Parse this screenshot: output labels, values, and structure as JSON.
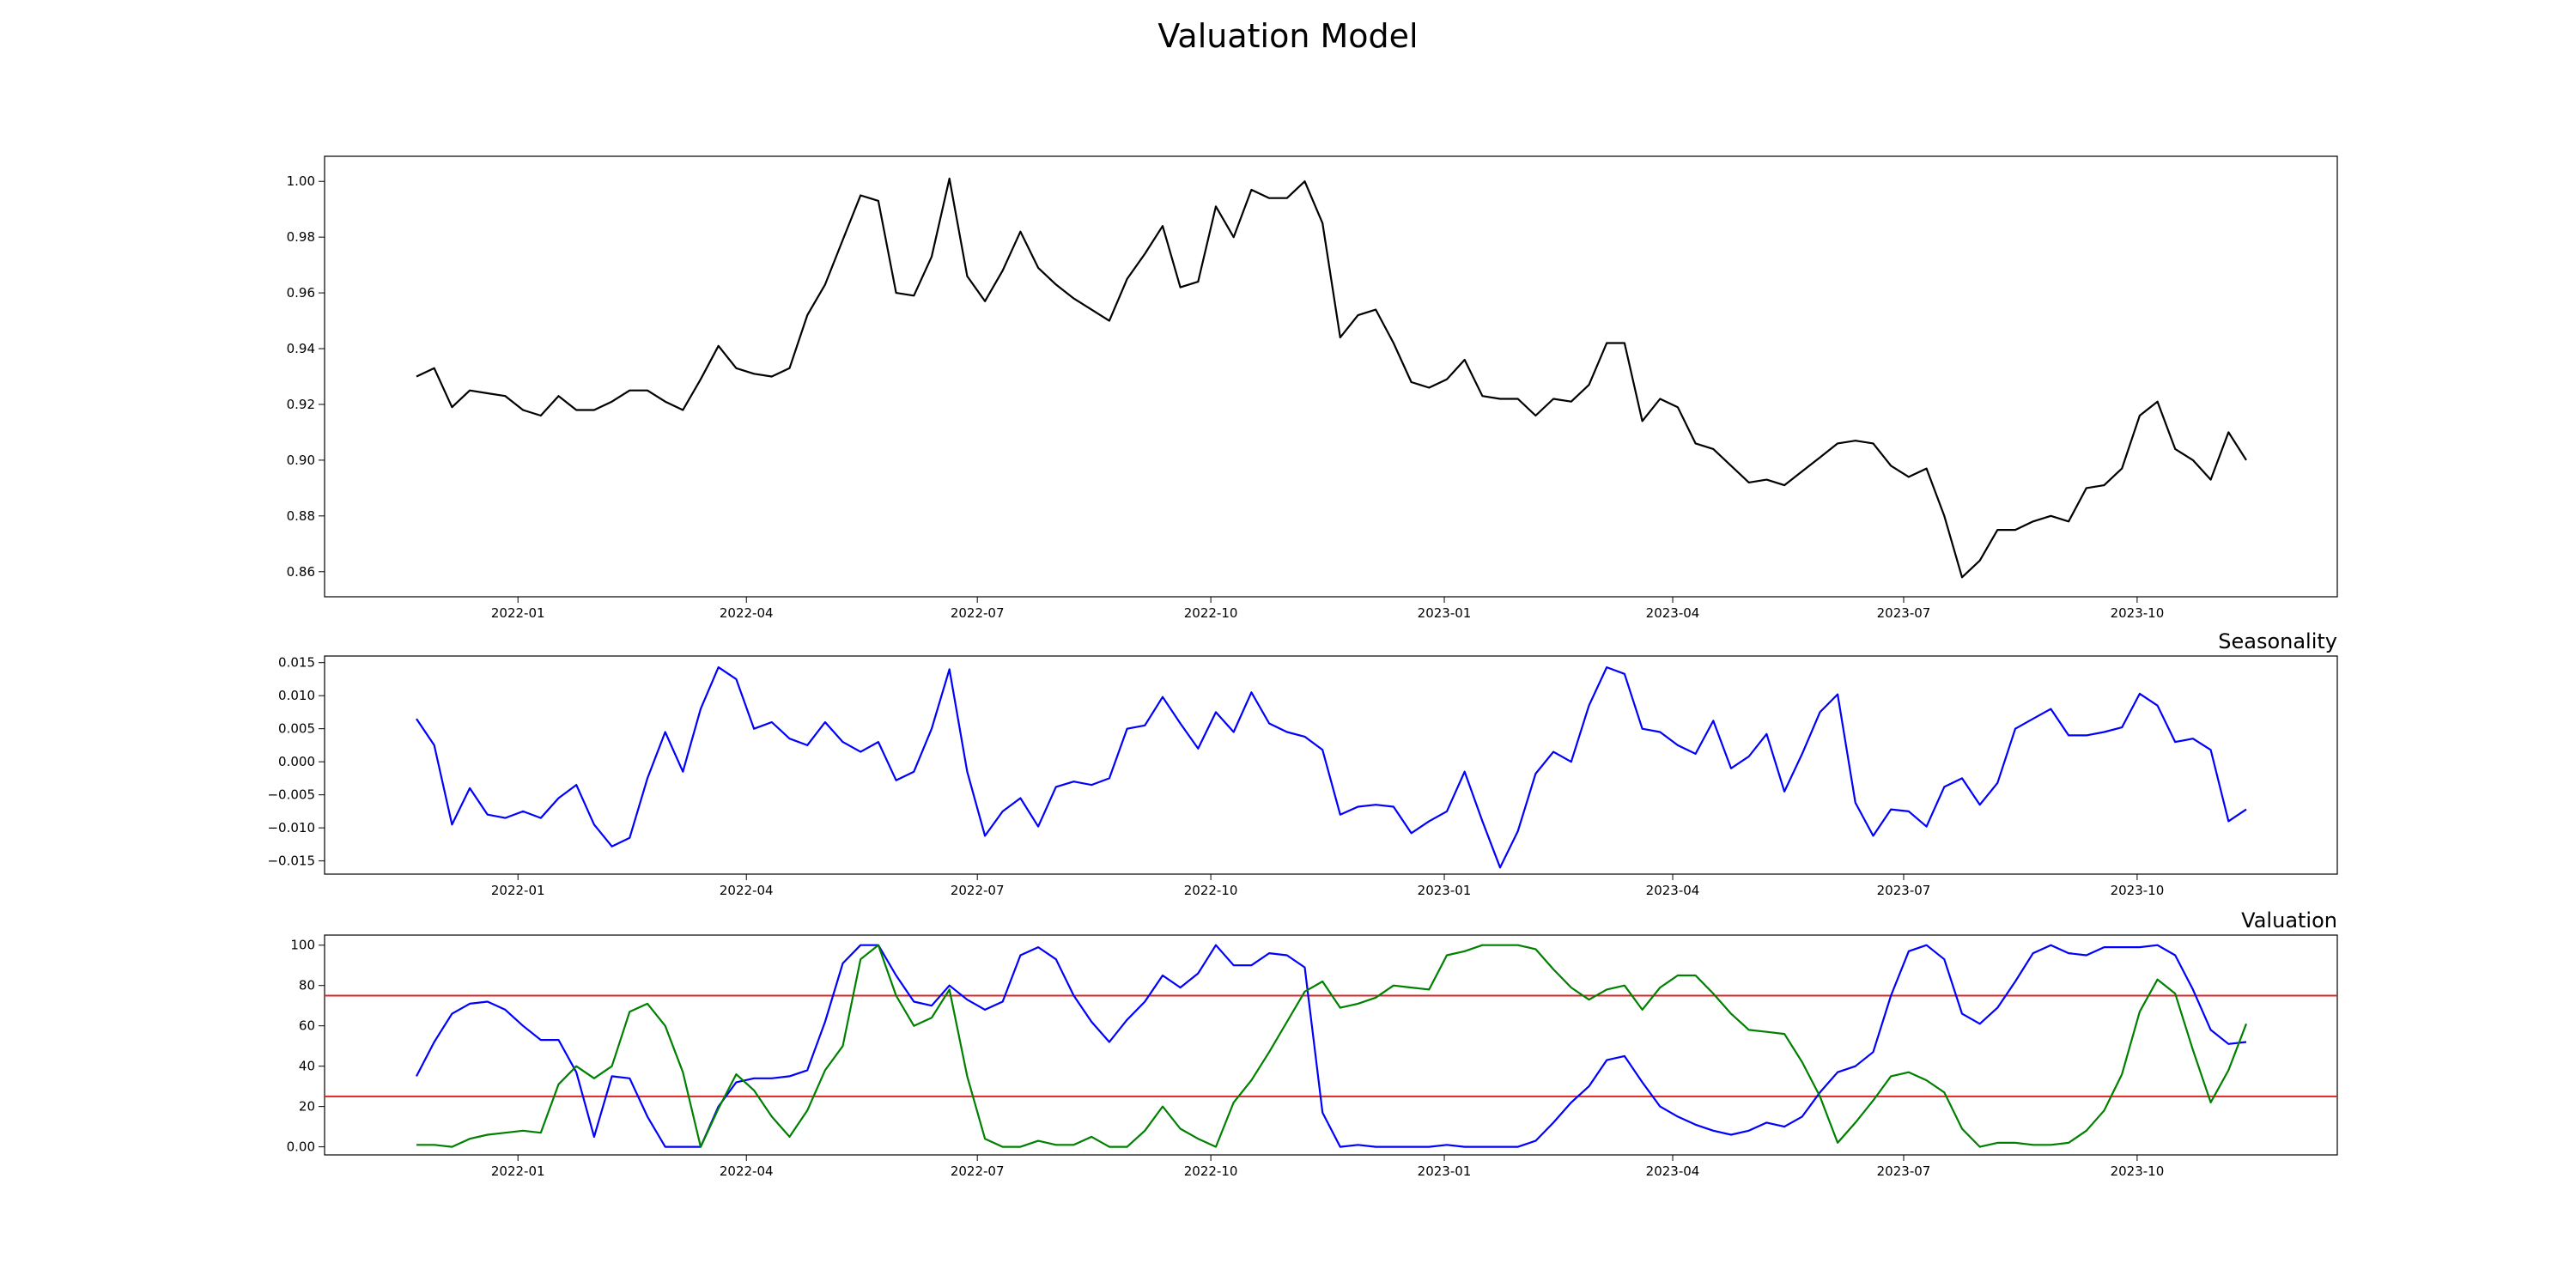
{
  "title": "Valuation Model",
  "x_tick_labels": [
    "2022-01",
    "2022-04",
    "2022-07",
    "2022-10",
    "2023-01",
    "2023-04",
    "2023-07",
    "2023-10"
  ],
  "colors": {
    "price": "#000000",
    "seasonality": "#0000ff",
    "valuation_blue": "#0000ff",
    "valuation_green": "#008000",
    "threshold": "#d62728"
  },
  "chart_data": [
    {
      "type": "line",
      "title": "",
      "xlabel": "",
      "ylabel": "",
      "x_type": "date",
      "x_start": "2021-11-22",
      "x_step_days": 7,
      "ylim": [
        0.851,
        1.009
      ],
      "yticks": [
        0.86,
        0.88,
        0.9,
        0.92,
        0.94,
        0.96,
        0.98,
        1.0
      ],
      "series": [
        {
          "values": [
            0.93,
            0.933,
            0.919,
            0.925,
            0.924,
            0.923,
            0.918,
            0.916,
            0.923,
            0.918,
            0.918,
            0.921,
            0.925,
            0.925,
            0.921,
            0.918,
            0.929,
            0.941,
            0.933,
            0.931,
            0.93,
            0.933,
            0.952,
            0.963,
            0.979,
            0.995,
            0.993,
            0.96,
            0.959,
            0.973,
            1.001,
            0.966,
            0.957,
            0.968,
            0.982,
            0.969,
            0.963,
            0.958,
            0.954,
            0.95,
            0.965,
            0.974,
            0.984,
            0.962,
            0.964,
            0.991,
            0.98,
            0.997,
            0.994,
            0.994,
            1.0,
            0.985,
            0.944,
            0.952,
            0.954,
            0.942,
            0.928,
            0.926,
            0.929,
            0.936,
            0.923,
            0.922,
            0.922,
            0.916,
            0.922,
            0.921,
            0.927,
            0.942,
            0.942,
            0.914,
            0.922,
            0.919,
            0.906,
            0.904,
            0.898,
            0.892,
            0.893,
            0.891,
            0.896,
            0.901,
            0.906,
            0.907,
            0.906,
            0.898,
            0.894,
            0.897,
            0.88,
            0.858,
            0.864,
            0.875,
            0.875,
            0.878,
            0.88,
            0.878,
            0.89,
            0.891,
            0.897,
            0.916,
            0.921,
            0.904,
            0.9,
            0.893,
            0.91,
            0.9
          ]
        }
      ]
    },
    {
      "type": "line",
      "title": "Seasonality",
      "xlabel": "",
      "ylabel": "",
      "x_type": "date",
      "x_start": "2021-11-22",
      "x_step_days": 7,
      "ylim": [
        -0.017,
        0.016
      ],
      "yticks": [
        -0.015,
        -0.01,
        -0.005,
        0.0,
        0.005,
        0.01,
        0.015
      ],
      "ytick_labels": [
        "−0.015",
        "−0.010",
        "−0.005",
        "0.000",
        "0.005",
        "0.010",
        "0.015"
      ],
      "series": [
        {
          "values": [
            0.0065,
            0.0025,
            -0.0095,
            -0.004,
            -0.008,
            -0.0085,
            -0.0075,
            -0.0085,
            -0.0055,
            -0.0035,
            -0.0095,
            -0.0128,
            -0.0115,
            -0.0025,
            0.0045,
            -0.0015,
            0.008,
            0.0143,
            0.0125,
            0.005,
            0.006,
            0.0035,
            0.0025,
            0.006,
            0.003,
            0.0015,
            0.003,
            -0.0028,
            -0.0015,
            0.005,
            0.014,
            -0.0015,
            -0.0112,
            -0.0075,
            -0.0055,
            -0.0098,
            -0.0038,
            -0.003,
            -0.0035,
            -0.0025,
            0.005,
            0.0055,
            0.0098,
            0.0058,
            0.002,
            0.0075,
            0.0045,
            0.0105,
            0.0058,
            0.0045,
            0.0038,
            0.0018,
            -0.008,
            -0.0068,
            -0.0065,
            -0.0068,
            -0.0108,
            -0.009,
            -0.0075,
            -0.0015,
            -0.009,
            -0.016,
            -0.0105,
            -0.0018,
            0.0015,
            0.0,
            0.0085,
            0.0143,
            0.0133,
            0.005,
            0.0045,
            0.0025,
            0.0012,
            0.0062,
            -0.001,
            0.0008,
            0.0042,
            -0.0045,
            0.0012,
            0.0075,
            0.0102,
            -0.0062,
            -0.0112,
            -0.0072,
            -0.0075,
            -0.0098,
            -0.0038,
            -0.0025,
            -0.0065,
            -0.0032,
            0.005,
            0.0065,
            0.008,
            0.004,
            0.004,
            0.0045,
            0.0052,
            0.0103,
            0.0085,
            0.003,
            0.0035,
            0.0018,
            -0.009,
            -0.0072
          ]
        }
      ]
    },
    {
      "type": "line",
      "title": "Valuation",
      "xlabel": "",
      "ylabel": "",
      "x_type": "date",
      "x_start": "2021-11-22",
      "x_step_days": 7,
      "ylim": [
        -4,
        105
      ],
      "yticks": [
        0,
        20,
        40,
        60,
        80,
        100
      ],
      "hlines": [
        75,
        25
      ],
      "series": [
        {
          "color_key": "valuation_blue",
          "values": [
            35,
            52,
            66,
            71,
            72,
            68,
            60,
            53,
            53,
            37,
            5,
            35,
            34,
            15,
            0,
            0,
            0,
            20,
            32,
            34,
            34,
            35,
            38,
            62,
            91,
            100,
            100,
            85,
            72,
            70,
            80,
            73,
            68,
            72,
            95,
            99,
            93,
            75,
            62,
            52,
            63,
            72,
            85,
            79,
            86,
            100,
            90,
            90,
            96,
            95,
            89,
            17,
            0,
            1,
            0,
            0,
            0,
            0,
            1,
            0,
            0,
            0,
            0,
            3,
            12,
            22,
            30,
            43,
            45,
            32,
            20,
            15,
            11,
            8,
            6,
            8,
            12,
            10,
            15,
            27,
            37,
            40,
            47,
            75,
            97,
            100,
            93,
            66,
            61,
            69,
            82,
            96,
            100,
            96,
            95,
            99,
            99,
            99,
            100,
            95,
            78,
            58,
            51,
            52
          ]
        },
        {
          "color_key": "valuation_green",
          "values": [
            1,
            1,
            0,
            4,
            6,
            7,
            8,
            7,
            31,
            40,
            34,
            40,
            67,
            71,
            60,
            37,
            0,
            19,
            36,
            28,
            15,
            5,
            18,
            38,
            50,
            93,
            100,
            75,
            60,
            64,
            78,
            35,
            4,
            0,
            0,
            3,
            1,
            1,
            5,
            0,
            0,
            8,
            20,
            9,
            4,
            0,
            22,
            33,
            47,
            62,
            77,
            82,
            69,
            71,
            74,
            80,
            79,
            78,
            95,
            97,
            100,
            100,
            100,
            98,
            88,
            79,
            73,
            78,
            80,
            68,
            79,
            85,
            85,
            76,
            66,
            58,
            57,
            56,
            42,
            25,
            2,
            12,
            23,
            35,
            37,
            33,
            27,
            9,
            0,
            2,
            2,
            1,
            1,
            2,
            8,
            18,
            36,
            67,
            83,
            76,
            48,
            22,
            38,
            61
          ]
        }
      ]
    }
  ]
}
